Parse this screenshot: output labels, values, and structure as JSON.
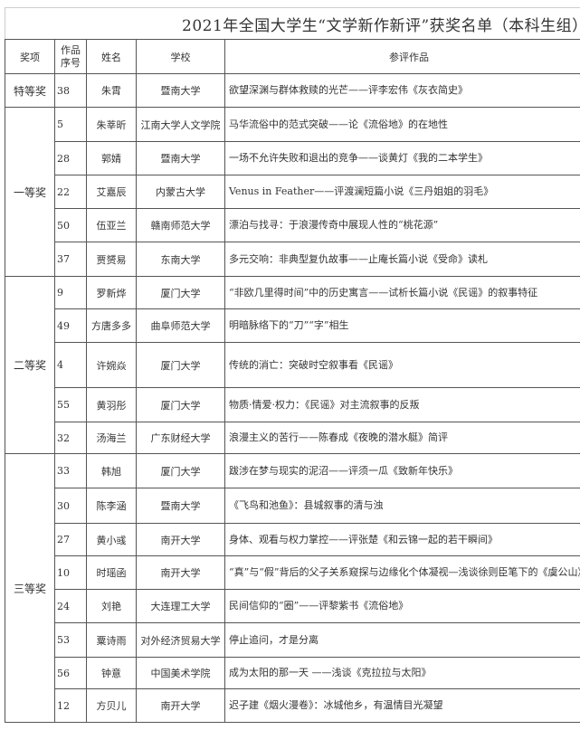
{
  "title": "2021年全国大学生“文学新作新评”获奖名单（本科生组）",
  "headers": {
    "award": "奖项",
    "number": "作品序号",
    "name": "姓名",
    "school": "学校",
    "work": "参评作品"
  },
  "groups": [
    {
      "award": "特等奖",
      "rows": [
        {
          "number": "38",
          "name": "朱霄",
          "school": "暨南大学",
          "work": "欲望深渊与群体救赎的光芒——评李宏伟《灰衣简史》"
        }
      ]
    },
    {
      "award": "一等奖",
      "rows": [
        {
          "number": "5",
          "name": "朱莘昕",
          "school": "江南大学人文学院",
          "work": "马华流俗中的范式突破——论《流俗地》的在地性"
        },
        {
          "number": "28",
          "name": "郭婧",
          "school": "暨南大学",
          "work": "一场不允许失败和退出的竞争——谈黄灯《我的二本学生》"
        },
        {
          "number": "22",
          "name": "艾嘉辰",
          "school": "内蒙古大学",
          "work": "Venus in Feather——评渡澜短篇小说《三丹姐姐的羽毛》"
        },
        {
          "number": "50",
          "name": "伍亚兰",
          "school": "赣南师范大学",
          "work": "漂泊与找寻：于浪漫传奇中展现人性的“桃花源”"
        },
        {
          "number": "37",
          "name": "贾赟易",
          "school": "东南大学",
          "work": "多元交响：非典型复仇故事——止庵长篇小说《受命》读札"
        }
      ]
    },
    {
      "award": "二等奖",
      "rows": [
        {
          "number": "9",
          "name": "罗新烨",
          "school": "厦门大学",
          "work": "“非欧几里得时间”中的历史寓言——试析长篇小说《民谣》的叙事特征"
        },
        {
          "number": "49",
          "name": "方唐多多",
          "school": "曲阜师范大学",
          "work": "明暗脉络下的“刀”“字”相生"
        },
        {
          "number": "4",
          "name": "许婉焱",
          "school": "厦门大学",
          "work": "传统的消亡：突破时空叙事看《民谣》"
        },
        {
          "number": "55",
          "name": "黄羽彤",
          "school": "厦门大学",
          "work": "物质·情爱·权力：《民谣》对主流叙事的反叛"
        },
        {
          "number": "32",
          "name": "汤海兰",
          "school": "广东财经大学",
          "work": "浪漫主义的苦行——陈春成《夜晚的潜水艇》简评"
        }
      ]
    },
    {
      "award": "三等奖",
      "rows": [
        {
          "number": "33",
          "name": "韩旭",
          "school": "厦门大学",
          "work": "跋涉在梦与现实的泥沼——评须一瓜《致新年快乐》"
        },
        {
          "number": "30",
          "name": "陈李涵",
          "school": "暨南大学",
          "work": "《飞鸟和池鱼》：县城叙事的清与浊"
        },
        {
          "number": "27",
          "name": "黄小彧",
          "school": "南开大学",
          "work": "身体、观看与权力掌控——评张楚《和云锦一起的若干瞬间》"
        },
        {
          "number": "10",
          "name": "时瑶函",
          "school": "南开大学",
          "work": "“真”与“假”背后的父子关系窥探与边缘化个体凝视—浅谈徐则臣笔下的《虞公山》"
        },
        {
          "number": "24",
          "name": "刘艳",
          "school": "大连理工大学",
          "work": "民间信仰的“圈”——评黎紫书《流俗地》"
        },
        {
          "number": "53",
          "name": "粟诗雨",
          "school": "对外经济贸易大学",
          "work": "停止追问，才是分离"
        },
        {
          "number": "56",
          "name": "钟意",
          "school": "中国美术学院",
          "work": "成为太阳的那一天 ——浅谈《克拉拉与太阳》"
        },
        {
          "number": "12",
          "name": "方贝儿",
          "school": "南开大学",
          "work": "迟子建《烟火漫卷》：冰城他乡，有温情目光凝望"
        }
      ]
    }
  ]
}
